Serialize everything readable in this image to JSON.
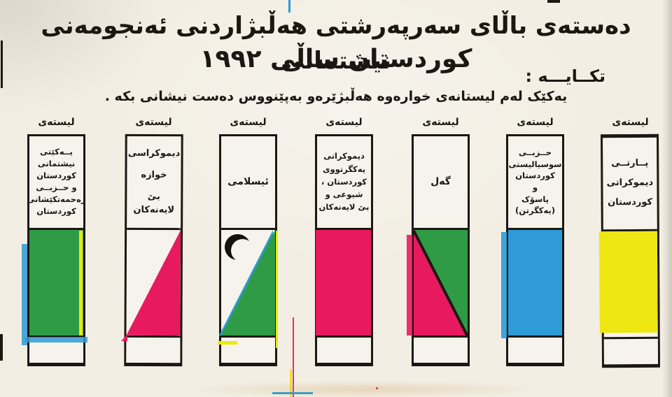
{
  "header": {
    "title_line1": "دەستەی باڵای سەرپەرشتی هەڵبژاردنی ئەنجومەنی نیشتمانی",
    "title_line2": "کوردستان ساڵی ١٩٩٢",
    "plea": "تکــایـــە :",
    "instruction": "یەکێک لەم لیستانەی خوارەوە هەڵبژێرەو بەپێنووس دەست نیشانی بکە ."
  },
  "list_label": "لیستەی",
  "columns": [
    {
      "name_lines": [
        "یــەکێتی",
        "نیشتمانی",
        "کوردستان",
        "و حــزبــی",
        "زەحمەتکێشانی",
        "کوردستان"
      ],
      "symbol": "solid-green-flag"
    },
    {
      "name_lines": [
        "دیموکراسی",
        "خوازە",
        "بێ لایەنەکان"
      ],
      "symbol": "pink-right-triangle"
    },
    {
      "name_lines": [
        "ئیسلامی"
      ],
      "symbol": "black-crescent-green-triangle"
    },
    {
      "name_lines": [
        "دیموکراتی",
        "یەکگرتووی",
        "کوردستان ،",
        "شیوعی و",
        "بێ لایەنەکان"
      ],
      "symbol": "solid-pink-flag"
    },
    {
      "name_lines": [
        "گەل"
      ],
      "symbol": "pink-green-diagonal-split"
    },
    {
      "name_lines": [
        "حــزبــی",
        "سوسیالیستی",
        "کوردستان",
        "و",
        "پاسۆک",
        "(یەکگرتن)"
      ],
      "symbol": "solid-blue-flag"
    },
    {
      "name_lines": [
        "پــارتــی",
        "دیموکراتی",
        "کوردستان"
      ],
      "symbol": "solid-yellow-flag"
    }
  ],
  "colors": {
    "green": "#2f9c45",
    "pink": "#e81a5f",
    "blue": "#2e9ad7",
    "yellow": "#efe711",
    "ink": "#1c1712",
    "paper": "#f2eee3",
    "paperlight": "#f6f3ec"
  }
}
